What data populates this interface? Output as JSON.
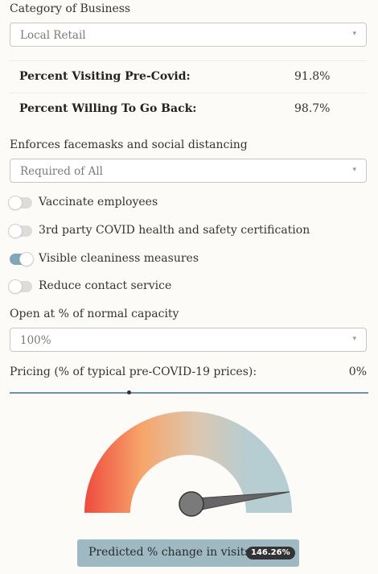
{
  "category": {
    "label": "Category of Business",
    "value": "Local Retail"
  },
  "stats": {
    "visiting_pre_covid": {
      "label": "Percent Visiting Pre-Covid:",
      "value": "91.8%"
    },
    "willing_to_go_back": {
      "label": "Percent Willing To Go Back:",
      "value": "98.7%"
    }
  },
  "facemasks": {
    "label": "Enforces facemasks and social distancing",
    "value": "Required of All"
  },
  "toggles": [
    {
      "label": "Vaccinate employees",
      "on": false
    },
    {
      "label": "3rd party COVID health and safety certification",
      "on": false
    },
    {
      "label": "Visible cleaniness measures",
      "on": true
    },
    {
      "label": "Reduce contact service",
      "on": false
    }
  ],
  "capacity": {
    "label": "Open at % of normal capacity",
    "value": "100%"
  },
  "pricing": {
    "label": "Pricing (% of typical pre-COVID-19 prices):",
    "value": "0%"
  },
  "gauge": {
    "colors": [
      "#ee4b3e",
      "#f7a56b",
      "#dcc7b0",
      "#b6cdd2"
    ]
  },
  "result": {
    "label": "Predicted % change in visits:",
    "value": "146.26%"
  }
}
